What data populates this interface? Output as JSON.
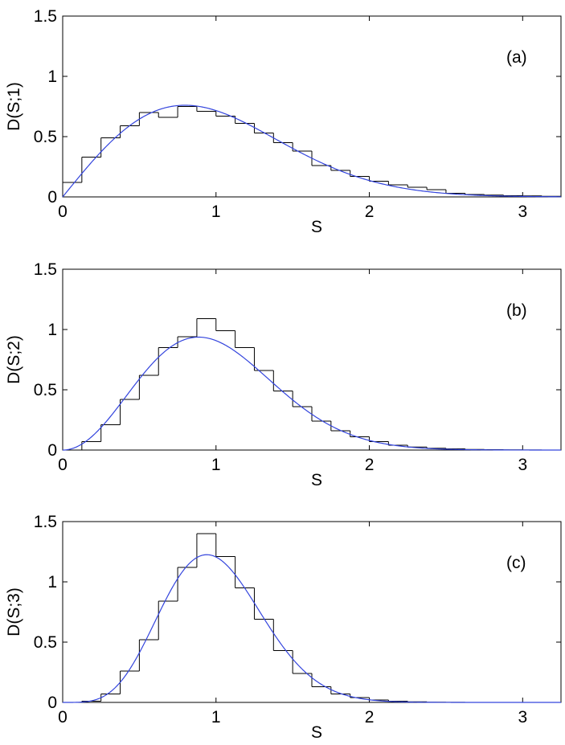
{
  "chart_data": [
    {
      "type": "line",
      "panel_label": "(a)",
      "xlabel": "S",
      "ylabel": "D(S;1)",
      "xlim": [
        0,
        3.25
      ],
      "ylim": [
        0,
        1.5
      ],
      "xticks": [
        "0",
        "1",
        "2",
        "3"
      ],
      "yticks": [
        "0",
        "0.5",
        "1",
        "1.5"
      ],
      "grid": false,
      "histogram": {
        "bin_width": 0.125,
        "values": [
          0.12,
          0.33,
          0.49,
          0.59,
          0.7,
          0.66,
          0.75,
          0.71,
          0.67,
          0.61,
          0.53,
          0.45,
          0.38,
          0.26,
          0.22,
          0.17,
          0.13,
          0.1,
          0.08,
          0.06,
          0.03,
          0.02,
          0.015,
          0.01,
          0.008,
          0.005,
          0.003
        ]
      },
      "curve": {
        "kind": "wigner",
        "beta": 1,
        "color": "#3344dd"
      }
    },
    {
      "type": "line",
      "panel_label": "(b)",
      "xlabel": "S",
      "ylabel": "D(S;2)",
      "xlim": [
        0,
        3.25
      ],
      "ylim": [
        0,
        1.5
      ],
      "xticks": [
        "0",
        "1",
        "2",
        "3"
      ],
      "yticks": [
        "0",
        "0.5",
        "1",
        "1.5"
      ],
      "grid": false,
      "histogram": {
        "bin_width": 0.125,
        "values": [
          0.0,
          0.07,
          0.21,
          0.42,
          0.62,
          0.85,
          0.94,
          1.09,
          0.99,
          0.85,
          0.66,
          0.49,
          0.36,
          0.24,
          0.16,
          0.11,
          0.07,
          0.04,
          0.025,
          0.015,
          0.01,
          0.005,
          0.003,
          0.002,
          0.001,
          0.0,
          0.0
        ]
      },
      "curve": {
        "kind": "wigner",
        "beta": 2,
        "color": "#3344dd"
      }
    },
    {
      "type": "line",
      "panel_label": "(c)",
      "xlabel": "S",
      "ylabel": "D(S;3)",
      "xlim": [
        0,
        3.25
      ],
      "ylim": [
        0,
        1.5
      ],
      "xticks": [
        "0",
        "1",
        "2",
        "3"
      ],
      "yticks": [
        "0",
        "0.5",
        "1",
        "1.5"
      ],
      "grid": false,
      "histogram": {
        "bin_width": 0.125,
        "values": [
          0.0,
          0.01,
          0.07,
          0.26,
          0.52,
          0.84,
          1.12,
          1.4,
          1.21,
          0.95,
          0.69,
          0.43,
          0.24,
          0.13,
          0.07,
          0.04,
          0.02,
          0.01,
          0.005,
          0.002,
          0.001,
          0.0,
          0.0,
          0.0,
          0.0,
          0.0,
          0.0
        ]
      },
      "curve": {
        "kind": "wigner",
        "beta": 4,
        "color": "#3344dd"
      }
    }
  ]
}
